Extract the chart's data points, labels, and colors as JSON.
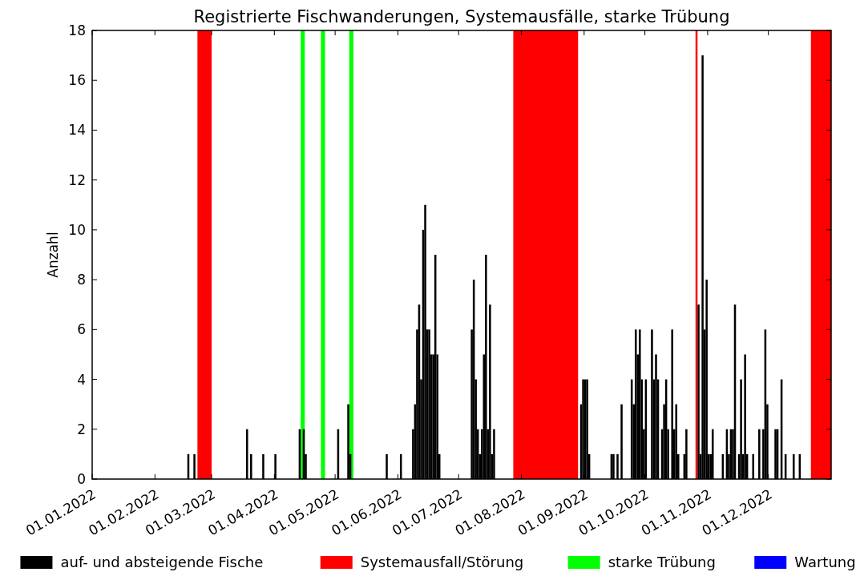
{
  "chart_data": {
    "type": "bar",
    "title": "Registrierte Fischwanderungen, Systemausfälle, starke Trübung",
    "ylabel": "Anzahl",
    "xlim": [
      "2022-01-01",
      "2023-01-01"
    ],
    "xticks": [
      {
        "value": "2022-01-01",
        "label": "01.01.2022"
      },
      {
        "value": "2022-02-01",
        "label": "01.02.2022"
      },
      {
        "value": "2022-03-01",
        "label": "01.03.2022"
      },
      {
        "value": "2022-04-01",
        "label": "01.04.2022"
      },
      {
        "value": "2022-05-01",
        "label": "01.05.2022"
      },
      {
        "value": "2022-06-01",
        "label": "01.06.2022"
      },
      {
        "value": "2022-07-01",
        "label": "01.07.2022"
      },
      {
        "value": "2022-08-01",
        "label": "01.08.2022"
      },
      {
        "value": "2022-09-01",
        "label": "01.09.2022"
      },
      {
        "value": "2022-10-01",
        "label": "01.10.2022"
      },
      {
        "value": "2022-11-01",
        "label": "01.11.2022"
      },
      {
        "value": "2022-12-01",
        "label": "01.12.2022"
      }
    ],
    "ylim": [
      0,
      18
    ],
    "yticks": [
      0,
      2,
      4,
      6,
      8,
      10,
      12,
      14,
      16,
      18
    ],
    "grid": false,
    "legend": "bottom",
    "series": [
      {
        "name": "auf- und absteigende Fische",
        "color": "#000000",
        "x": [
          "2022-02-17",
          "2022-02-20",
          "2022-03-18",
          "2022-03-20",
          "2022-03-26",
          "2022-04-01",
          "2022-04-13",
          "2022-04-15",
          "2022-04-16",
          "2022-05-02",
          "2022-05-07",
          "2022-05-08",
          "2022-05-26",
          "2022-06-02",
          "2022-06-08",
          "2022-06-09",
          "2022-06-10",
          "2022-06-11",
          "2022-06-12",
          "2022-06-13",
          "2022-06-14",
          "2022-06-15",
          "2022-06-16",
          "2022-06-17",
          "2022-06-18",
          "2022-06-19",
          "2022-06-20",
          "2022-06-21",
          "2022-07-07",
          "2022-07-08",
          "2022-07-09",
          "2022-07-10",
          "2022-07-11",
          "2022-07-12",
          "2022-07-13",
          "2022-07-14",
          "2022-07-15",
          "2022-07-16",
          "2022-07-17",
          "2022-07-18",
          "2022-08-30",
          "2022-08-31",
          "2022-09-01",
          "2022-09-02",
          "2022-09-03",
          "2022-09-14",
          "2022-09-15",
          "2022-09-17",
          "2022-09-19",
          "2022-09-24",
          "2022-09-25",
          "2022-09-26",
          "2022-09-27",
          "2022-09-28",
          "2022-09-29",
          "2022-09-30",
          "2022-10-01",
          "2022-10-04",
          "2022-10-05",
          "2022-10-06",
          "2022-10-07",
          "2022-10-09",
          "2022-10-10",
          "2022-10-11",
          "2022-10-12",
          "2022-10-14",
          "2022-10-15",
          "2022-10-16",
          "2022-10-17",
          "2022-10-20",
          "2022-10-21",
          "2022-10-27",
          "2022-10-28",
          "2022-10-29",
          "2022-10-30",
          "2022-10-31",
          "2022-11-01",
          "2022-11-02",
          "2022-11-03",
          "2022-11-08",
          "2022-11-10",
          "2022-11-11",
          "2022-11-12",
          "2022-11-13",
          "2022-11-14",
          "2022-11-16",
          "2022-11-17",
          "2022-11-18",
          "2022-11-19",
          "2022-11-20",
          "2022-11-23",
          "2022-11-26",
          "2022-11-28",
          "2022-11-29",
          "2022-11-30",
          "2022-12-04",
          "2022-12-05",
          "2022-12-07",
          "2022-12-09",
          "2022-12-13",
          "2022-12-16"
        ],
        "values": [
          1,
          1,
          2,
          1,
          1,
          1,
          2,
          2,
          1,
          2,
          3,
          1,
          1,
          1,
          2,
          3,
          6,
          7,
          4,
          10,
          11,
          6,
          6,
          5,
          5,
          9,
          5,
          1,
          6,
          8,
          4,
          2,
          1,
          2,
          5,
          9,
          2,
          7,
          1,
          2,
          3,
          4,
          4,
          4,
          1,
          1,
          1,
          1,
          3,
          4,
          3,
          6,
          5,
          6,
          4,
          2,
          4,
          6,
          4,
          5,
          4,
          2,
          3,
          4,
          2,
          6,
          2,
          3,
          1,
          1,
          2,
          7,
          1,
          17,
          6,
          8,
          1,
          1,
          2,
          1,
          2,
          1,
          2,
          2,
          7,
          1,
          4,
          1,
          5,
          1,
          1,
          2,
          2,
          6,
          3,
          2,
          2,
          4,
          1,
          1,
          1
        ]
      },
      {
        "name": "Wartung",
        "color": "#0000ff"
      }
    ],
    "bands": [
      {
        "axis": "x",
        "from": "2022-02-22",
        "to": "2022-03-01",
        "label": "Systemausfall/Störung",
        "color": "#ff0000"
      },
      {
        "axis": "x",
        "from": "2022-04-14",
        "to": "2022-04-16",
        "label": "starke Trübung",
        "color": "#00ff00"
      },
      {
        "axis": "x",
        "from": "2022-04-24",
        "to": "2022-04-26",
        "color": "#00ff00"
      },
      {
        "axis": "x",
        "from": "2022-05-08",
        "to": "2022-05-10",
        "color": "#00ff00"
      },
      {
        "axis": "x",
        "from": "2022-07-28",
        "to": "2022-08-29",
        "color": "#ff0000"
      },
      {
        "axis": "x",
        "from": "2022-10-26",
        "to": "2022-10-27",
        "color": "#ff0000"
      },
      {
        "axis": "x",
        "from": "2022-12-22",
        "to": "2023-01-01",
        "color": "#ff0000"
      }
    ]
  }
}
